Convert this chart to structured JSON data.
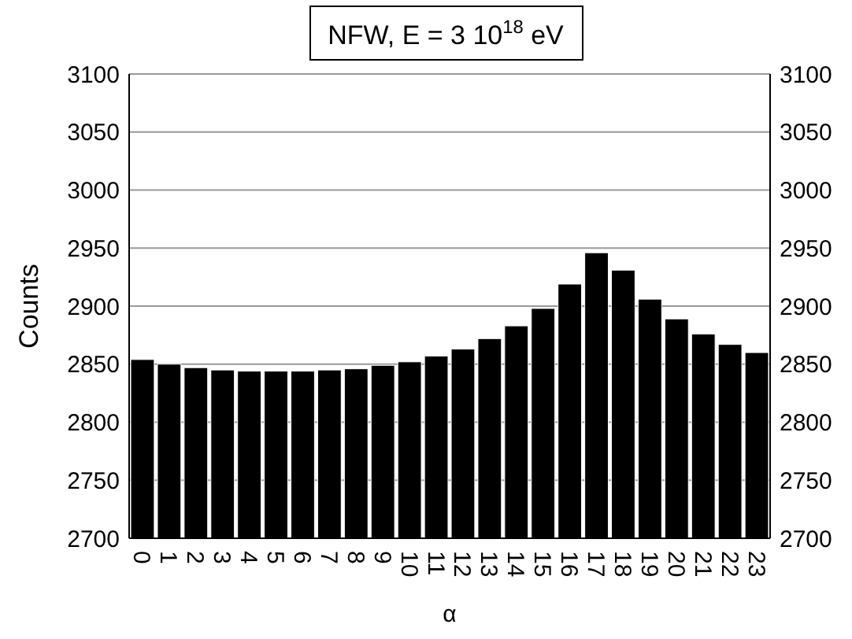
{
  "chart_data": {
    "type": "bar",
    "title": "NFW, E = 3 10$^{18}$ eV",
    "xlabel": "α",
    "ylabel": "Counts",
    "categories": [
      "0",
      "1",
      "2",
      "3",
      "4",
      "5",
      "6",
      "7",
      "8",
      "9",
      "10",
      "11",
      "12",
      "13",
      "14",
      "15",
      "16",
      "17",
      "18",
      "19",
      "20",
      "21",
      "22",
      "23"
    ],
    "values": [
      2854,
      2850,
      2847,
      2845,
      2844,
      2844,
      2844,
      2845,
      2846,
      2849,
      2852,
      2857,
      2863,
      2872,
      2883,
      2898,
      2919,
      2946,
      2931,
      2906,
      2889,
      2876,
      2867,
      2860
    ],
    "color": "#000000",
    "ylim": [
      2700,
      3100
    ],
    "yticks": [
      2700,
      2750,
      2800,
      2850,
      2900,
      2950,
      3000,
      3050,
      3100
    ],
    "y2lim": [
      2700,
      3100
    ],
    "y2ticks": [
      2700,
      2750,
      2800,
      2850,
      2900,
      2950,
      3000,
      3050,
      3100
    ],
    "grid": "y"
  }
}
